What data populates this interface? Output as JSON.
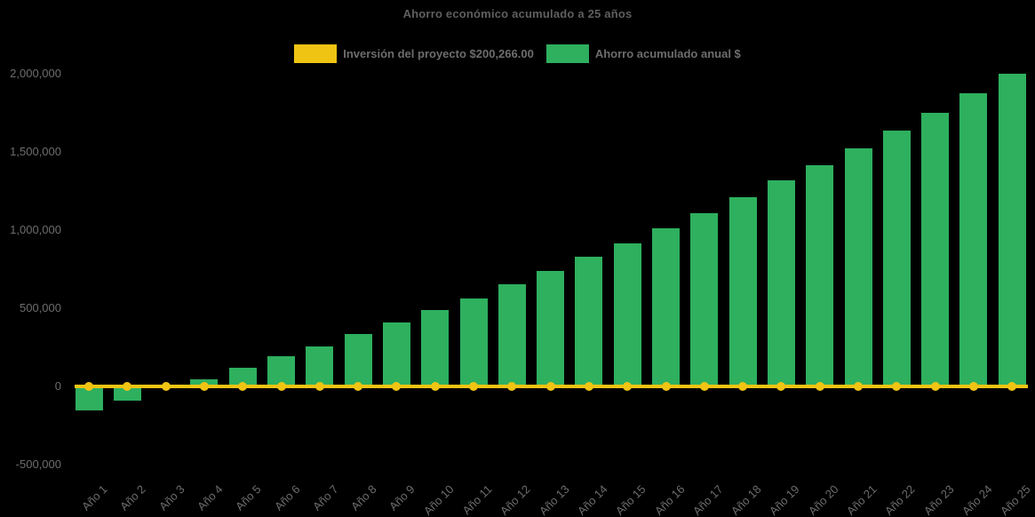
{
  "title": "Ahorro económico acumulado a 25 años",
  "colors": {
    "background": "#000000",
    "bar_green": "#2EB05E",
    "line_yellow": "#F0C413",
    "title_text": "#5F5F5F",
    "axis_text": "#6D6D6D"
  },
  "legend": {
    "investment": {
      "label": "Inversión del proyecto $200,266.00",
      "color": "#F0C413"
    },
    "savings": {
      "label": "Ahorro acumulado anual $",
      "color": "#2EB05E"
    }
  },
  "chart_data": {
    "type": "bar",
    "title": "Ahorro económico acumulado a 25 años",
    "categories": [
      "Año 1",
      "Año 2",
      "Año 3",
      "Año 4",
      "Año 5",
      "Año 6",
      "Año 7",
      "Año 8",
      "Año 9",
      "Año 10",
      "Año 11",
      "Año 12",
      "Año 13",
      "Año 14",
      "Año 15",
      "Año 16",
      "Año 17",
      "Año 18",
      "Año 19",
      "Año 20",
      "Año 21",
      "Año 22",
      "Año 23",
      "Año 24",
      "Año 25"
    ],
    "series": [
      {
        "name": "Ahorro acumulado anual $",
        "type": "bar",
        "color": "#2EB05E",
        "values": [
          -155000,
          -95000,
          -10000,
          45000,
          115000,
          190000,
          255000,
          335000,
          405000,
          485000,
          560000,
          650000,
          735000,
          825000,
          910000,
          1010000,
          1105000,
          1210000,
          1315000,
          1410000,
          1520000,
          1635000,
          1750000,
          1875000,
          1995000
        ]
      },
      {
        "name": "Inversión del proyecto $200,266.00",
        "type": "line",
        "color": "#F0C413",
        "marker": "circle",
        "values": [
          0,
          0,
          0,
          0,
          0,
          0,
          0,
          0,
          0,
          0,
          0,
          0,
          0,
          0,
          0,
          0,
          0,
          0,
          0,
          0,
          0,
          0,
          0,
          0,
          0
        ]
      }
    ],
    "ylim": [
      -500000,
      2000000
    ],
    "yticks": [
      {
        "value": 2000000,
        "label": "2,000,000"
      },
      {
        "value": 1500000,
        "label": "1,500,000"
      },
      {
        "value": 1000000,
        "label": "1,000,000"
      },
      {
        "value": 500000,
        "label": "500,000"
      },
      {
        "value": 0,
        "label": "0"
      },
      {
        "value": -500000,
        "label": "-500,000"
      }
    ],
    "xlabel": "",
    "ylabel": "",
    "legend_position": "top-center",
    "grid": false
  }
}
